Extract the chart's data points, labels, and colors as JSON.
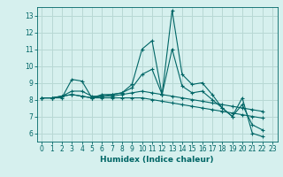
{
  "xlabel": "Humidex (Indice chaleur)",
  "bg_color": "#d6f0ee",
  "line_color": "#006666",
  "grid_color": "#b8d8d4",
  "xlim": [
    -0.5,
    23.5
  ],
  "ylim": [
    5.5,
    13.5
  ],
  "xticks": [
    0,
    1,
    2,
    3,
    4,
    5,
    6,
    7,
    8,
    9,
    10,
    11,
    12,
    13,
    14,
    15,
    16,
    17,
    18,
    19,
    20,
    21,
    22,
    23
  ],
  "yticks": [
    6,
    7,
    8,
    9,
    10,
    11,
    12,
    13
  ],
  "lines": [
    [
      8.1,
      8.1,
      8.1,
      9.2,
      9.1,
      8.1,
      8.3,
      8.3,
      8.4,
      8.9,
      11.0,
      11.5,
      8.3,
      13.3,
      9.5,
      8.9,
      9.0,
      8.3,
      7.5,
      7.0,
      8.1,
      6.0,
      5.8
    ],
    [
      8.1,
      8.1,
      8.2,
      8.3,
      8.2,
      8.1,
      8.1,
      8.1,
      8.1,
      8.1,
      8.1,
      8.0,
      7.9,
      7.8,
      7.7,
      7.6,
      7.5,
      7.4,
      7.3,
      7.2,
      7.1,
      7.0,
      6.9
    ],
    [
      8.1,
      8.1,
      8.2,
      8.3,
      8.2,
      8.1,
      8.2,
      8.2,
      8.3,
      8.4,
      8.5,
      8.4,
      8.3,
      8.2,
      8.1,
      8.0,
      7.9,
      7.8,
      7.7,
      7.6,
      7.5,
      7.4,
      7.3
    ],
    [
      8.1,
      8.1,
      8.2,
      8.5,
      8.5,
      8.2,
      8.2,
      8.3,
      8.4,
      8.7,
      9.5,
      9.8,
      8.3,
      11.0,
      8.8,
      8.4,
      8.5,
      8.0,
      7.5,
      7.0,
      7.7,
      6.5,
      6.2
    ]
  ]
}
